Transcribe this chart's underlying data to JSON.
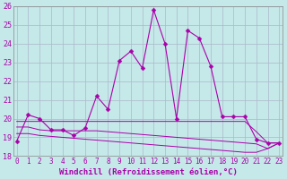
{
  "xlabel": "Windchill (Refroidissement éolien,°C)",
  "xlim": [
    -0.3,
    23.3
  ],
  "ylim": [
    18,
    26
  ],
  "yticks": [
    18,
    19,
    20,
    21,
    22,
    23,
    24,
    25,
    26
  ],
  "xticks": [
    0,
    1,
    2,
    3,
    4,
    5,
    6,
    7,
    8,
    9,
    10,
    11,
    12,
    13,
    14,
    15,
    16,
    17,
    18,
    19,
    20,
    21,
    22,
    23
  ],
  "background_color": "#c5e8e8",
  "grid_color": "#aab8cc",
  "line_color": "#aa00aa",
  "main_line": [
    18.8,
    20.2,
    20.0,
    19.4,
    19.4,
    19.1,
    19.5,
    21.2,
    20.5,
    23.1,
    23.6,
    22.7,
    25.8,
    24.0,
    20.0,
    24.7,
    24.3,
    22.8,
    20.1,
    20.1,
    20.1,
    18.9,
    18.7,
    18.7
  ],
  "flat_lines": [
    [
      19.85,
      19.85,
      19.85,
      19.85,
      19.85,
      19.85,
      19.85,
      19.85,
      19.85,
      19.85,
      19.85,
      19.85,
      19.85,
      19.85,
      19.85,
      19.85,
      19.85,
      19.85,
      19.85,
      19.85,
      19.85,
      19.3,
      18.7,
      18.7
    ],
    [
      19.55,
      19.55,
      19.4,
      19.35,
      19.35,
      19.35,
      19.35,
      19.35,
      19.3,
      19.25,
      19.2,
      19.15,
      19.1,
      19.05,
      19.0,
      18.95,
      18.9,
      18.85,
      18.8,
      18.75,
      18.7,
      18.65,
      18.4,
      18.7
    ],
    [
      19.2,
      19.2,
      19.1,
      19.05,
      19.0,
      18.95,
      18.9,
      18.85,
      18.8,
      18.75,
      18.7,
      18.65,
      18.6,
      18.55,
      18.5,
      18.45,
      18.4,
      18.35,
      18.3,
      18.25,
      18.2,
      18.2,
      18.4,
      18.7
    ]
  ],
  "fontsize_xlabel": 6.5,
  "fontsize_ytick": 6,
  "fontsize_xtick": 5.5
}
